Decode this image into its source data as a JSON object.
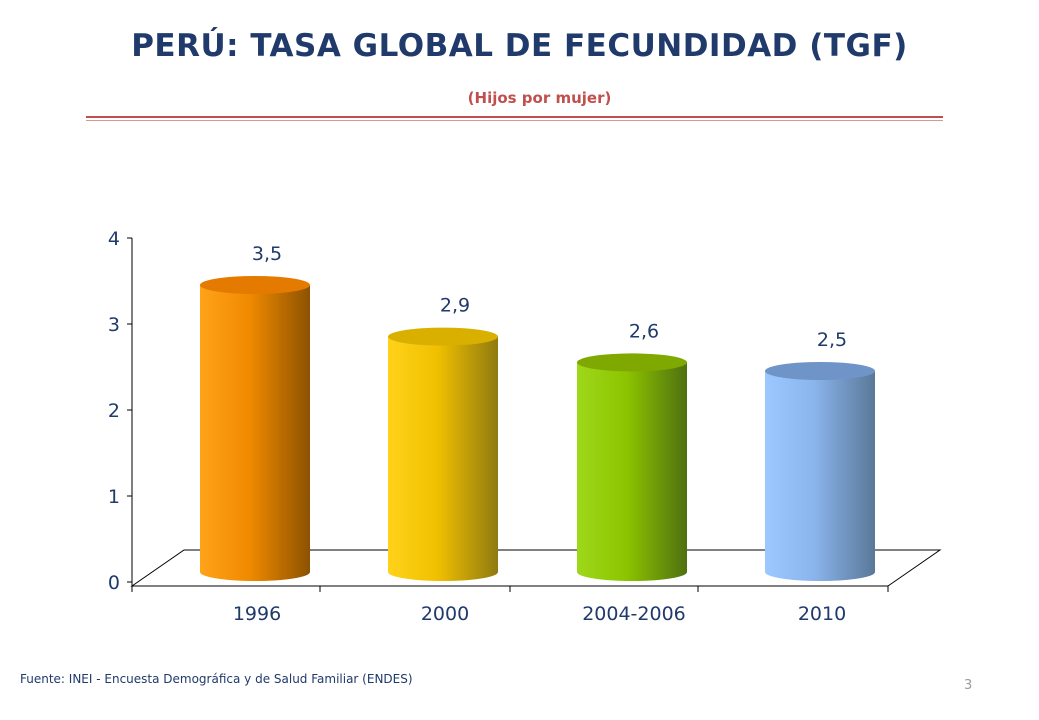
{
  "slide": {
    "title": "PERÚ: TASA GLOBAL DE FECUNDIDAD (TGF)",
    "subtitle": "(Hijos por mujer)",
    "source": "Fuente: INEI - Encuesta Demográfica y de Salud Familiar (ENDES)",
    "page_number": "3"
  },
  "chart_data": {
    "type": "bar",
    "title": "PERÚ: TASA GLOBAL DE FECUNDIDAD (TGF)",
    "subtitle": "(Hijos por mujer)",
    "categories": [
      "1996",
      "2000",
      "2004-2006",
      "2010"
    ],
    "values": [
      3.5,
      2.9,
      2.6,
      2.5
    ],
    "data_labels": [
      "3,5",
      "2,9",
      "2,6",
      "2,5"
    ],
    "y_ticks": [
      "0",
      "1",
      "2",
      "3",
      "4"
    ],
    "ylim": [
      0,
      4
    ],
    "grid": false,
    "legend": "none",
    "style": "3d-cylinder",
    "bar_colors": [
      {
        "light": "#ffa31a",
        "mid": "#f08a00",
        "dark": "#8c5200",
        "top": "#e57a00"
      },
      {
        "light": "#ffd21a",
        "mid": "#f0c000",
        "dark": "#8f7a10",
        "top": "#d9b000"
      },
      {
        "light": "#9ed81a",
        "mid": "#8cc400",
        "dark": "#4f7010",
        "top": "#7fa800"
      },
      {
        "light": "#9cc8ff",
        "mid": "#8ab4ec",
        "dark": "#5a7898",
        "top": "#6f95c8"
      }
    ]
  }
}
